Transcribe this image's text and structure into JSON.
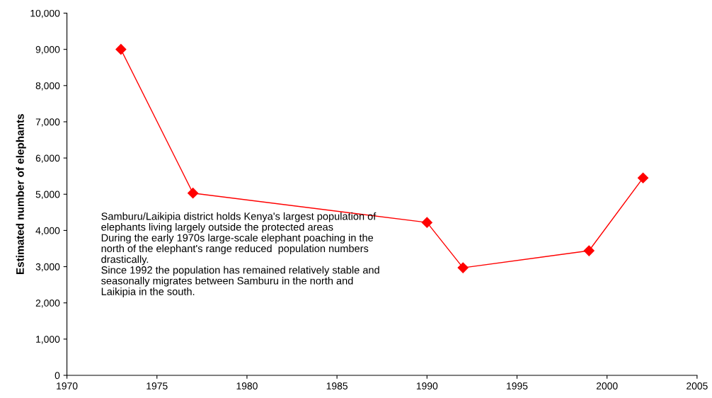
{
  "chart_data": {
    "type": "line",
    "ylabel": "Estimated number of elephants",
    "x": [
      1973,
      1977,
      1990,
      1992,
      1999,
      2002
    ],
    "series": [
      {
        "color": "#ff0000",
        "values": [
          9000,
          5030,
          4220,
          2970,
          3440,
          5450
        ]
      }
    ],
    "xlim": [
      1970,
      2005
    ],
    "xticks": [
      1970,
      1975,
      1980,
      1985,
      1990,
      1995,
      2000,
      2005
    ],
    "ylim": [
      0,
      10000
    ],
    "yticks": [
      {
        "value": 0,
        "label": "0"
      },
      {
        "value": 1000,
        "label": "1,000"
      },
      {
        "value": 2000,
        "label": "2,000"
      },
      {
        "value": 3000,
        "label": "3,000"
      },
      {
        "value": 4000,
        "label": "4,000"
      },
      {
        "value": 5000,
        "label": "5,000"
      },
      {
        "value": 6000,
        "label": "6,000"
      },
      {
        "value": 7000,
        "label": "7,000"
      },
      {
        "value": 8000,
        "label": "8,000"
      },
      {
        "value": 9000,
        "label": "9,000"
      },
      {
        "value": 10000,
        "label": "10,000"
      }
    ],
    "marker": "diamond",
    "line_style": "solid",
    "grid": false,
    "legend": false,
    "annotations": [
      "Samburu/Laikipia district holds Kenya's largest population of\nelephants living largely outside the protected areas\nDuring the early 1970s large-scale elephant poaching in the\nnorth of the elephant's range reduced  population numbers\ndrastically.\nSince 1992 the population has remained relatively stable and\nseasonally migrates between Samburu in the north and\nLaikipia in the south."
    ]
  }
}
